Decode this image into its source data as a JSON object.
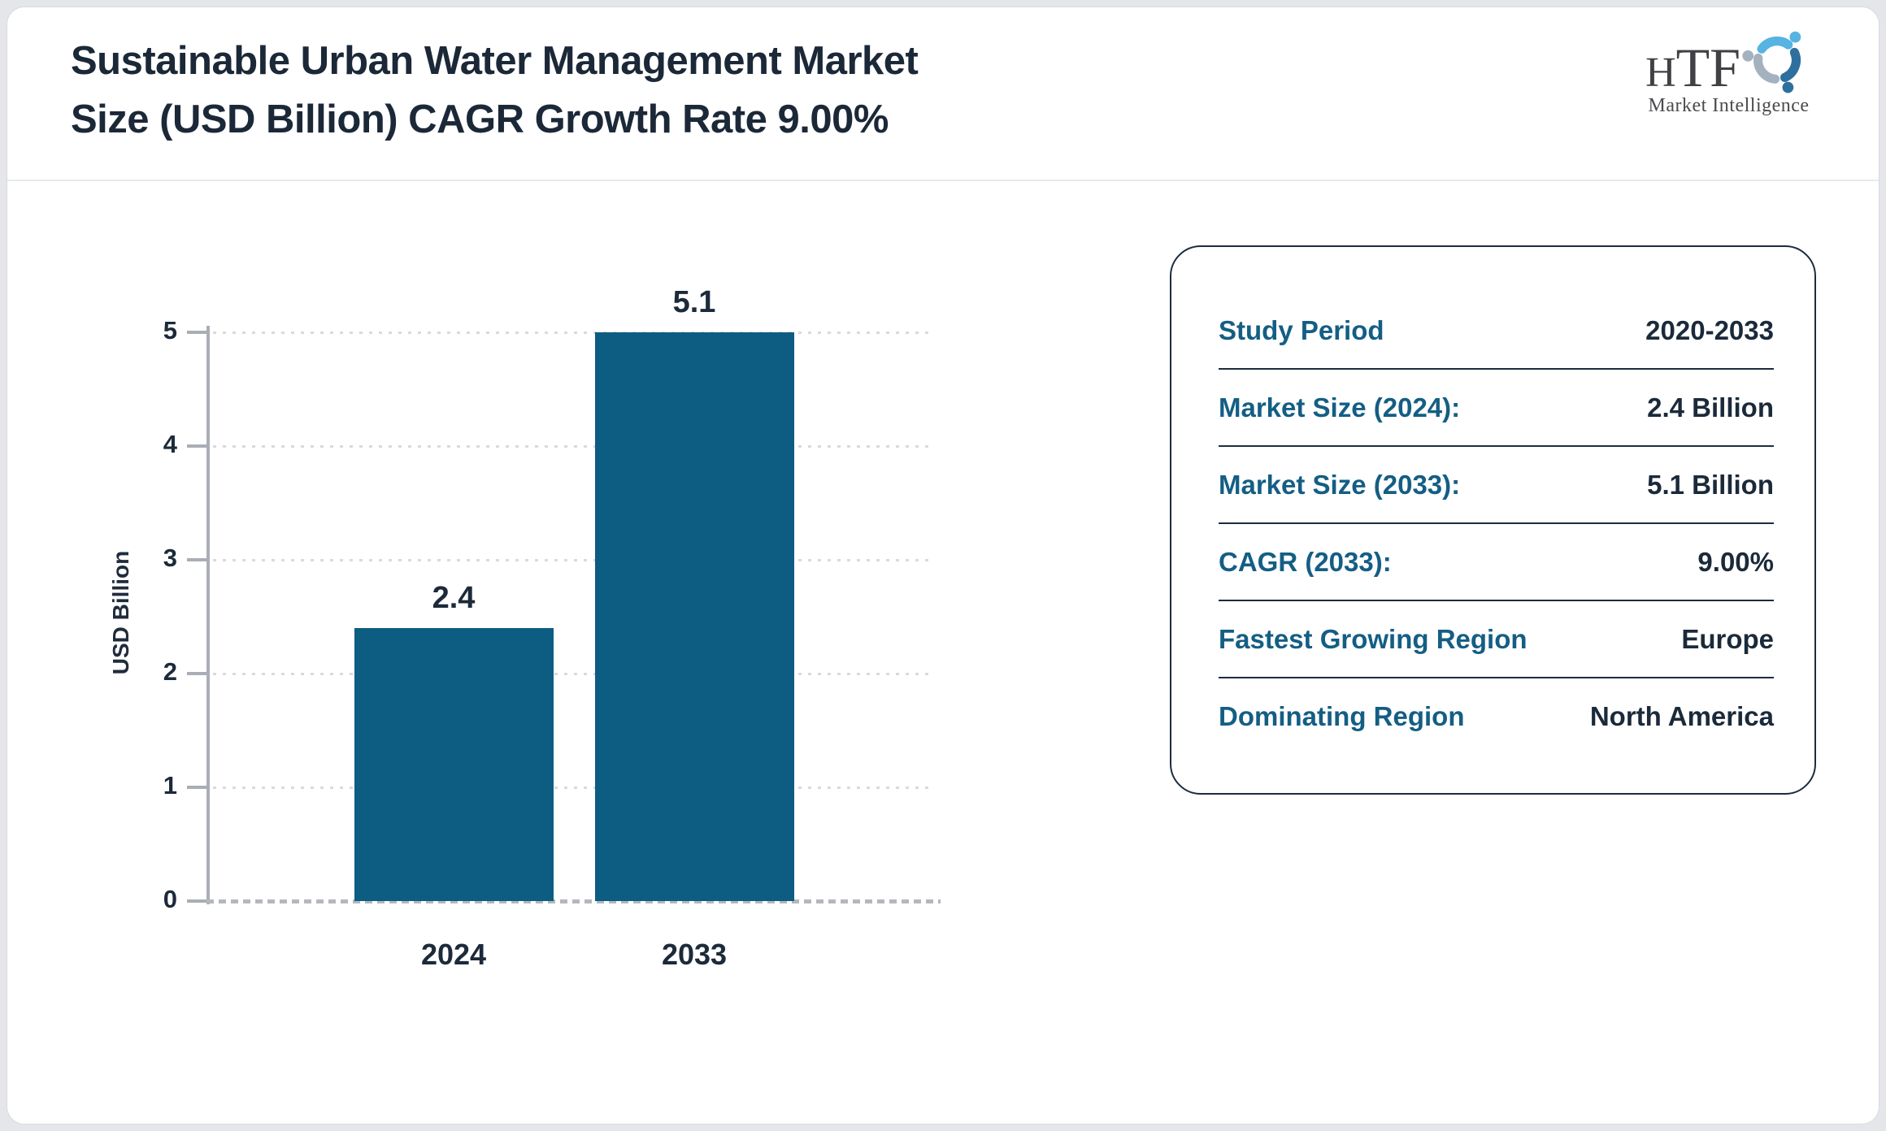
{
  "page": {
    "title_line1": "Sustainable Urban Water Management Market",
    "title_line2": "Size (USD Billion) CAGR Growth Rate 9.00%"
  },
  "branding": {
    "logo_h": "H",
    "logo_tf": "TF",
    "logo_subtext": "Market Intelligence"
  },
  "chart_data": {
    "type": "bar",
    "title": "Sustainable Urban Water Management Market Size (USD Billion) CAGR Growth Rate 9.00%",
    "categories": [
      "2024",
      "2033"
    ],
    "values": [
      2.4,
      5.1
    ],
    "value_labels": [
      "2.4",
      "5.1"
    ],
    "xlabel": "",
    "ylabel": "USD Billion",
    "ylim": [
      0,
      5
    ],
    "yticks": [
      0,
      1,
      2,
      3,
      4,
      5
    ],
    "grid": "horizontal-dotted",
    "legend_position": "none",
    "bar_color": "#0d5c82",
    "note": "2033 bar is drawn clipped at the y-axis max of 5 with its 5.1 label above the bar"
  },
  "info_panel": {
    "rows": [
      {
        "label": "Study Period",
        "value": "2020-2033"
      },
      {
        "label": "Market Size (2024):",
        "value": "2.4 Billion"
      },
      {
        "label": "Market Size (2033):",
        "value": "5.1 Billion"
      },
      {
        "label": "CAGR (2033):",
        "value": "9.00%"
      },
      {
        "label": "Fastest Growing Region",
        "value": "Europe"
      },
      {
        "label": "Dominating Region",
        "value": "North America"
      }
    ]
  },
  "colors": {
    "bar": "#0d5c82",
    "label_teal": "#145e84",
    "text_dark": "#1c2a3a",
    "axis_gray": "#a9aeb6",
    "gridline": "#d9dadd",
    "logo_light_blue": "#56b3e2",
    "logo_steel_blue": "#a4b2c0",
    "logo_dark_blue": "#2e6f9e"
  }
}
